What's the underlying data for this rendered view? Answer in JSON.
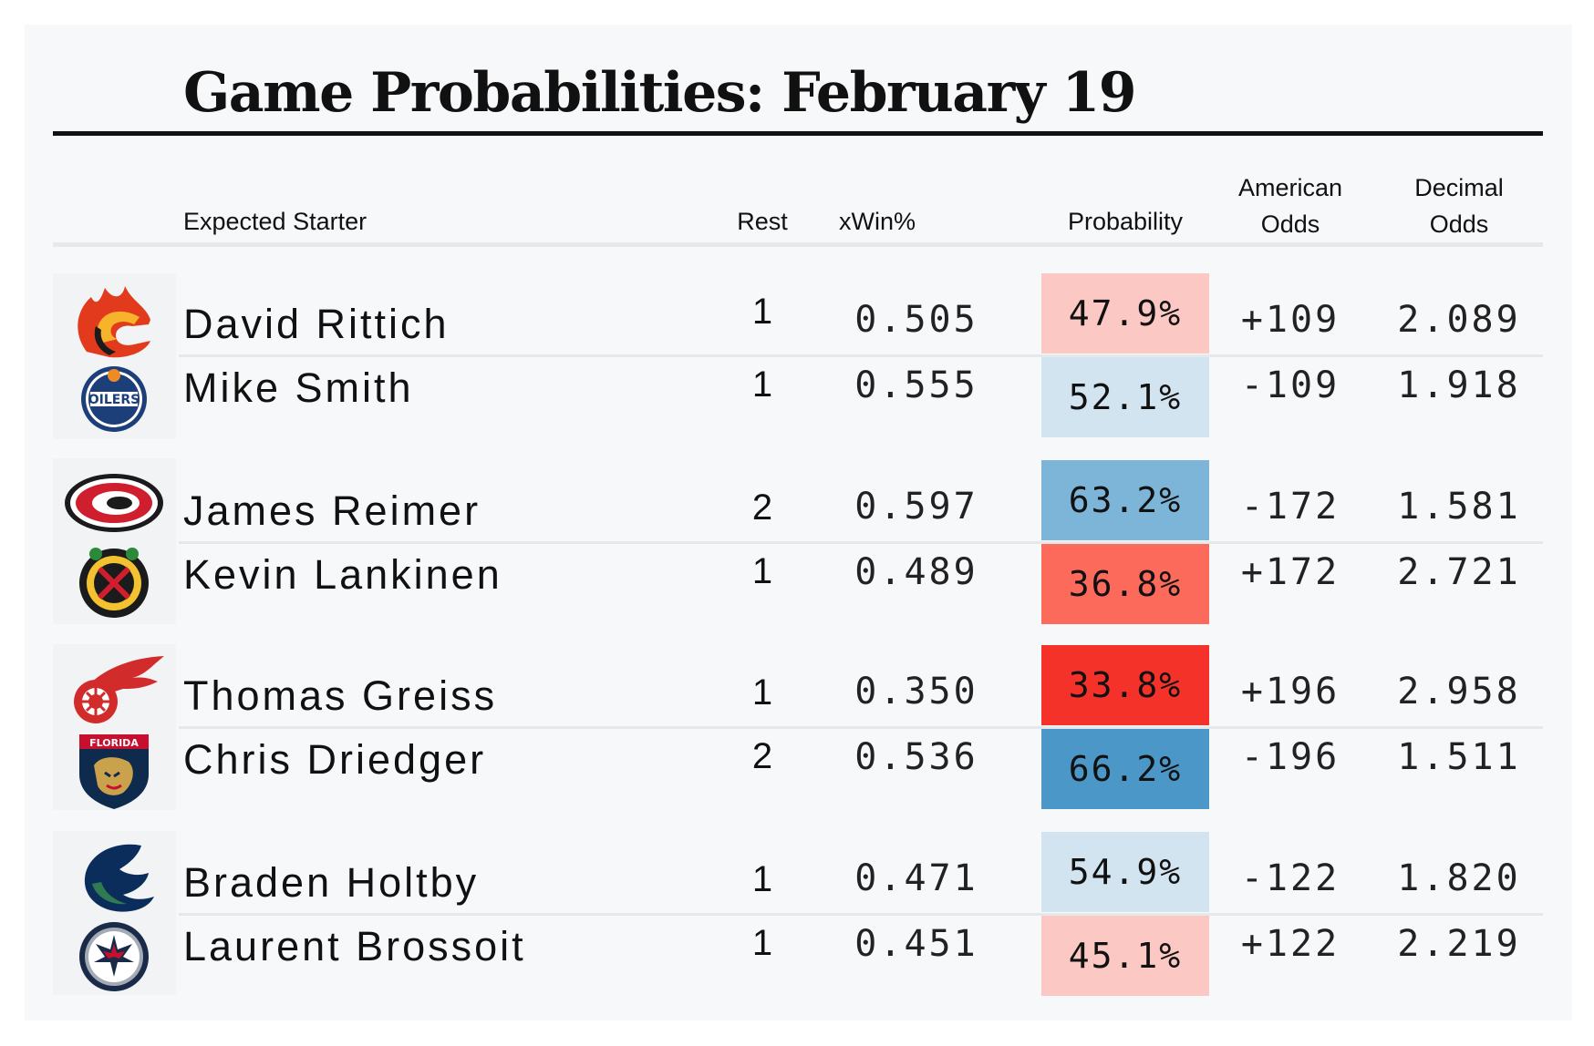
{
  "title": "Game Probabilities: February 19",
  "headers": {
    "starter": "Expected Starter",
    "rest": "Rest",
    "xwin": "xWin%",
    "probability": "Probability",
    "american_line1": "American",
    "american_line2": "Odds",
    "decimal_line1": "Decimal",
    "decimal_line2": "Odds"
  },
  "games": [
    {
      "rows": [
        {
          "logo": "flames-logo",
          "name": "David Rittich",
          "rest": "1",
          "xwin": "0.505",
          "probability": "47.9%",
          "american": "+109",
          "decimal": "2.089",
          "prob_color": "#fcc8c4"
        },
        {
          "logo": "oilers-logo",
          "name": "Mike Smith",
          "rest": "1",
          "xwin": "0.555",
          "probability": "52.1%",
          "american": "-109",
          "decimal": "1.918",
          "prob_color": "#d3e4f1"
        }
      ]
    },
    {
      "rows": [
        {
          "logo": "hurricanes-logo",
          "name": "James Reimer",
          "rest": "2",
          "xwin": "0.597",
          "probability": "63.2%",
          "american": "-172",
          "decimal": "1.581",
          "prob_color": "#7db5d9"
        },
        {
          "logo": "blackhawks-logo",
          "name": "Kevin Lankinen",
          "rest": "1",
          "xwin": "0.489",
          "probability": "36.8%",
          "american": "+172",
          "decimal": "2.721",
          "prob_color": "#fb6a5a"
        }
      ]
    },
    {
      "rows": [
        {
          "logo": "red-wings-logo",
          "name": "Thomas Greiss",
          "rest": "1",
          "xwin": "0.350",
          "probability": "33.8%",
          "american": "+196",
          "decimal": "2.958",
          "prob_color": "#f5322a"
        },
        {
          "logo": "panthers-logo",
          "name": "Chris Driedger",
          "rest": "2",
          "xwin": "0.536",
          "probability": "66.2%",
          "american": "-196",
          "decimal": "1.511",
          "prob_color": "#4b98c8"
        }
      ]
    },
    {
      "rows": [
        {
          "logo": "canucks-logo",
          "name": "Braden Holtby",
          "rest": "1",
          "xwin": "0.471",
          "probability": "54.9%",
          "american": "-122",
          "decimal": "1.820",
          "prob_color": "#d3e4f1"
        },
        {
          "logo": "jets-logo",
          "name": "Laurent Brossoit",
          "rest": "1",
          "xwin": "0.451",
          "probability": "45.1%",
          "american": "+122",
          "decimal": "2.219",
          "prob_color": "#fcc8c4"
        }
      ]
    }
  ]
}
